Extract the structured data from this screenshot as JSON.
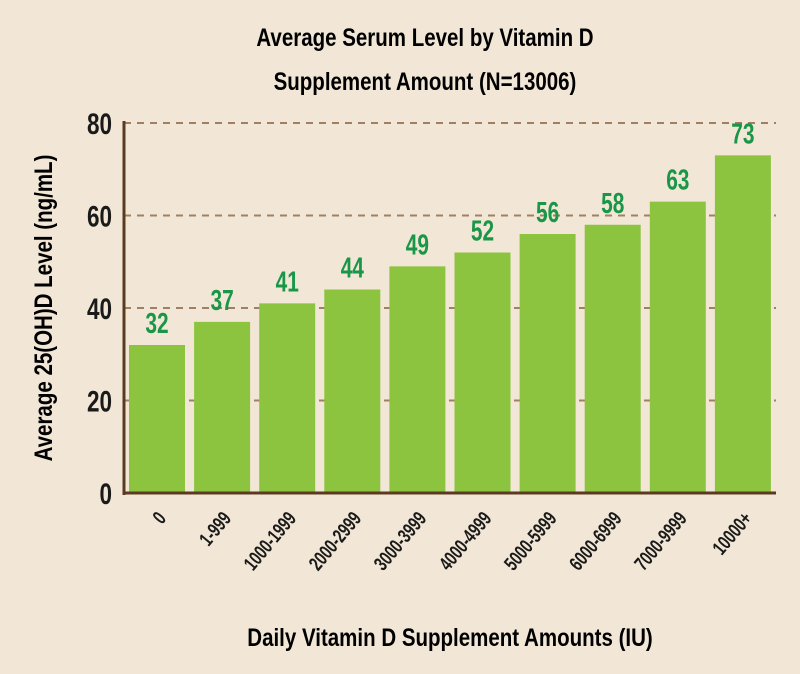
{
  "chart_data": {
    "type": "bar",
    "title_lines": [
      "Average Serum Level by Vitamin D",
      "Supplement Amount (N=13006)"
    ],
    "xlabel": "Daily Vitamin D Supplement Amounts (IU)",
    "ylabel": "Average 25(OH)D Level (ng/mL)",
    "categories": [
      "0",
      "1-999",
      "1000-1999",
      "2000-2999",
      "3000-3999",
      "4000-4999",
      "5000-5999",
      "6000-6999",
      "7000-9999",
      "10000+"
    ],
    "values": [
      32,
      37,
      41,
      44,
      49,
      52,
      56,
      58,
      63,
      73
    ],
    "ylim": [
      0,
      80
    ],
    "yticks": [
      0,
      20,
      40,
      60,
      80
    ],
    "grid": true,
    "colors": {
      "background": "#f2e7d6",
      "bar": "#8cc43f",
      "data_label": "#1a9648",
      "axis": "#5a3b22",
      "grid": "#a08064",
      "text": "#1a1a1a"
    }
  }
}
